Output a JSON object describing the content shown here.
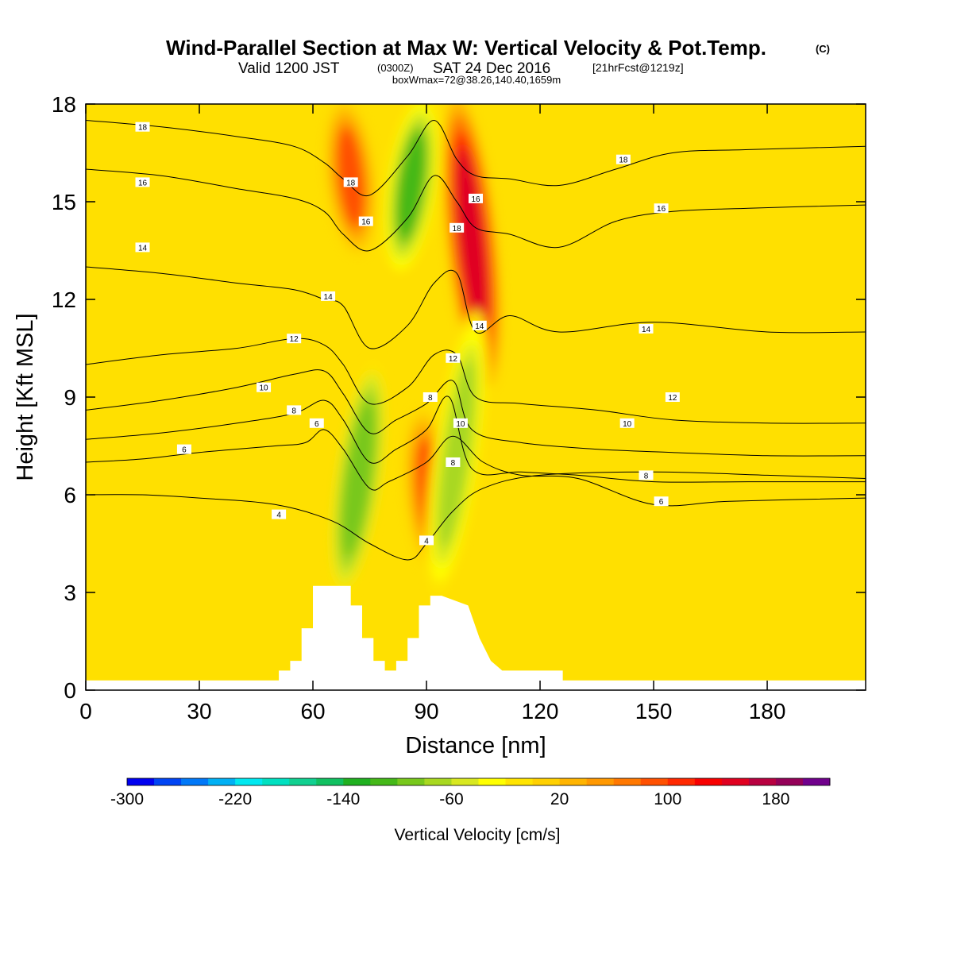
{
  "header": {
    "title": "Wind-Parallel Section at Max W: Vertical Velocity & Pot.Temp.",
    "title_mark": "(C)",
    "valid_prefix": "Valid 1200 JST",
    "valid_zulu": "(0300Z)",
    "valid_date": "SAT 24 Dec 2016",
    "forecast": "[21hrFcst@1219z]",
    "box_wmax": "boxWmax=72@38.26,140.40,1659m"
  },
  "chart_data": {
    "type": "heatmap",
    "title": "Wind-Parallel Section at Max W: Vertical Velocity & Pot.Temp.",
    "xlabel": "Distance [nm]",
    "ylabel": "Height [Kft MSL]",
    "xlim": [
      0,
      206
    ],
    "ylim": [
      0,
      18
    ],
    "x_ticks": [
      0,
      30,
      60,
      90,
      120,
      150,
      180
    ],
    "y_ticks": [
      0,
      3,
      6,
      9,
      12,
      15,
      18
    ],
    "grid": false,
    "colorbar": {
      "label": "Vertical Velocity [cm/s]",
      "placement": "bottom",
      "min": -300,
      "max": 220,
      "step": 20,
      "tick_labels": [
        "-300",
        "-220",
        "-140",
        "-60",
        "20",
        "100",
        "180"
      ],
      "tick_values": [
        -300,
        -220,
        -140,
        -60,
        20,
        100,
        180
      ],
      "colors": [
        "#0000f0",
        "#0044f4",
        "#0078f8",
        "#00b0f4",
        "#00e8f0",
        "#00e0c0",
        "#10d090",
        "#10c060",
        "#20b020",
        "#44b818",
        "#78c81c",
        "#a8d820",
        "#d8e820",
        "#ffff00",
        "#ffe400",
        "#ffd000",
        "#ffb400",
        "#ff9800",
        "#ff7800",
        "#ff5000",
        "#ff2800",
        "#f80000",
        "#e00020",
        "#b80040",
        "#940058",
        "#70008c"
      ]
    },
    "terrain_profile": {
      "x": [
        0,
        51,
        51,
        54,
        54,
        57,
        57,
        60,
        60,
        63,
        63,
        70,
        70,
        73,
        73,
        76,
        76,
        79,
        79,
        82,
        82,
        85,
        85,
        88,
        88,
        91,
        91,
        94,
        94,
        101,
        101,
        104,
        104,
        107,
        107,
        110,
        110,
        126,
        126,
        206
      ],
      "height_kft": [
        0.3,
        0.3,
        0.6,
        0.6,
        0.9,
        0.9,
        1.9,
        1.9,
        3.2,
        3.2,
        3.2,
        3.2,
        2.6,
        2.6,
        1.6,
        1.6,
        0.9,
        0.9,
        0.6,
        0.6,
        0.9,
        0.9,
        1.6,
        1.6,
        2.6,
        2.6,
        2.9,
        2.9,
        2.9,
        2.6,
        2.6,
        1.6,
        1.6,
        0.9,
        0.9,
        0.6,
        0.6,
        0.6,
        0.3,
        0.3
      ]
    },
    "field_features": [
      {
        "type": "updraft",
        "center_x": 102,
        "base_kft": 9.5,
        "top_kft": 18,
        "peak_cm_s": 150
      },
      {
        "type": "updraft",
        "center_x": 91,
        "base_kft": 3.5,
        "top_kft": 8.5,
        "peak_cm_s": 80
      },
      {
        "type": "updraft",
        "center_x": 70,
        "base_kft": 13.5,
        "top_kft": 18,
        "peak_cm_s": 80
      },
      {
        "type": "downdraft",
        "center_x": 86,
        "base_kft": 13,
        "top_kft": 18,
        "peak_cm_s": -110
      },
      {
        "type": "downdraft",
        "center_x": 72,
        "base_kft": 3,
        "top_kft": 10,
        "peak_cm_s": -100
      },
      {
        "type": "downdraft",
        "center_x": 98,
        "base_kft": 3,
        "top_kft": 11.5,
        "peak_cm_s": -80
      }
    ],
    "contours": {
      "variable": "Pot.Temp.",
      "levels": [
        {
          "label": "4",
          "x": [
            0,
            15,
            30,
            50,
            65,
            75,
            85,
            90,
            97,
            105,
            120,
            150,
            180,
            206
          ],
          "y": [
            6.0,
            6.0,
            5.9,
            5.7,
            5.2,
            4.5,
            4.0,
            4.5,
            5.5,
            6.2,
            6.6,
            6.7,
            6.6,
            6.5
          ],
          "label_positions": [
            [
              51,
              5.4
            ],
            [
              90,
              4.6
            ]
          ]
        },
        {
          "label": "6",
          "x": [
            0,
            15,
            30,
            50,
            58,
            63,
            68,
            75,
            80,
            90,
            97,
            105,
            115,
            130,
            150,
            170,
            206
          ],
          "y": [
            7.0,
            7.1,
            7.3,
            7.5,
            7.6,
            8.0,
            7.4,
            6.2,
            6.4,
            7.0,
            7.8,
            7.0,
            6.6,
            6.5,
            5.7,
            5.8,
            5.9
          ],
          "label_positions": [
            [
              26,
              7.4
            ],
            [
              61,
              8.2
            ],
            [
              152,
              5.8
            ]
          ]
        },
        {
          "label": "8",
          "x": [
            0,
            20,
            40,
            55,
            63,
            68,
            75,
            82,
            90,
            96,
            102,
            115,
            130,
            150,
            175,
            206
          ],
          "y": [
            7.7,
            7.9,
            8.2,
            8.5,
            8.9,
            8.3,
            7.0,
            7.4,
            8.0,
            9.0,
            6.8,
            6.7,
            6.6,
            6.4,
            6.4,
            6.4
          ],
          "label_positions": [
            [
              55,
              8.6
            ],
            [
              91,
              9.0
            ],
            [
              97,
              7.0
            ],
            [
              148,
              6.6
            ]
          ]
        },
        {
          "label": "10",
          "x": [
            0,
            20,
            40,
            55,
            63,
            68,
            75,
            82,
            90,
            97,
            102,
            115,
            135,
            155,
            180,
            206
          ],
          "y": [
            8.6,
            8.9,
            9.3,
            9.7,
            9.8,
            9.1,
            7.9,
            8.3,
            8.8,
            9.5,
            8.0,
            7.6,
            7.4,
            7.3,
            7.2,
            7.2
          ],
          "label_positions": [
            [
              47,
              9.3
            ],
            [
              99,
              8.2
            ],
            [
              143,
              8.2
            ]
          ]
        },
        {
          "label": "12",
          "x": [
            0,
            20,
            40,
            55,
            63,
            68,
            75,
            85,
            92,
            98,
            103,
            115,
            135,
            155,
            180,
            206
          ],
          "y": [
            10.0,
            10.3,
            10.5,
            10.8,
            10.6,
            10.0,
            8.8,
            9.3,
            10.3,
            10.3,
            9.0,
            8.8,
            8.6,
            8.3,
            8.2,
            8.2
          ],
          "label_positions": [
            [
              55,
              10.8
            ],
            [
              97,
              10.2
            ],
            [
              155,
              9.0
            ]
          ]
        },
        {
          "label": "14",
          "x": [
            0,
            20,
            40,
            55,
            63,
            68,
            75,
            85,
            92,
            98,
            103,
            112,
            125,
            150,
            180,
            206
          ],
          "y": [
            13.0,
            12.8,
            12.5,
            12.3,
            12.0,
            11.8,
            10.5,
            11.2,
            12.5,
            12.8,
            11.0,
            11.5,
            11.0,
            11.3,
            11.0,
            11.0
          ],
          "label_positions": [
            [
              15,
              13.6
            ],
            [
              64,
              12.1
            ],
            [
              104,
              11.2
            ],
            [
              148,
              11.1
            ]
          ]
        },
        {
          "label": "16",
          "x": [
            0,
            20,
            40,
            55,
            63,
            68,
            75,
            85,
            92,
            98,
            103,
            112,
            125,
            140,
            155,
            175,
            206
          ],
          "y": [
            16.0,
            15.8,
            15.4,
            15.1,
            14.7,
            14.0,
            13.5,
            14.5,
            15.8,
            15.0,
            14.2,
            14.0,
            13.6,
            14.4,
            14.7,
            14.8,
            14.9
          ],
          "label_positions": [
            [
              15,
              15.6
            ],
            [
              74,
              14.4
            ],
            [
              103,
              15.1
            ],
            [
              152,
              14.8
            ]
          ]
        },
        {
          "label": "18",
          "x": [
            0,
            20,
            40,
            55,
            63,
            68,
            75,
            85,
            92,
            98,
            103,
            112,
            125,
            140,
            155,
            175,
            206
          ],
          "y": [
            17.5,
            17.3,
            17.0,
            16.7,
            16.2,
            15.7,
            15.2,
            16.4,
            17.5,
            16.3,
            15.8,
            15.7,
            15.5,
            16.0,
            16.5,
            16.6,
            16.7
          ],
          "label_positions": [
            [
              15,
              17.3
            ],
            [
              70,
              15.6
            ],
            [
              98,
              14.2
            ],
            [
              142,
              16.3
            ]
          ]
        }
      ]
    }
  }
}
